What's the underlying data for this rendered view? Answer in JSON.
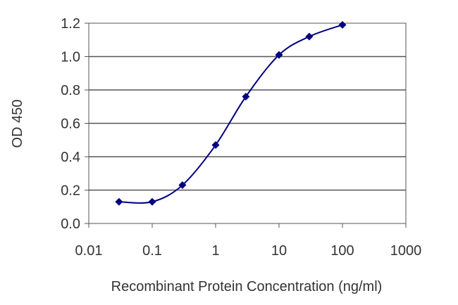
{
  "chart_data": {
    "type": "line",
    "title": "",
    "xlabel": "Recombinant Protein Concentration (ng/ml)",
    "ylabel": "OD 450",
    "xscale": "log",
    "xlim": [
      0.01,
      1000
    ],
    "ylim": [
      0.0,
      1.2
    ],
    "x_ticks": [
      "0.01",
      "0.1",
      "1",
      "10",
      "100",
      "1000"
    ],
    "y_ticks": [
      "0.0",
      "0.2",
      "0.4",
      "0.6",
      "0.8",
      "1.0",
      "1.2"
    ],
    "grid": "horizontal",
    "legend": "none",
    "series": [
      {
        "color": "#000080",
        "marker": "diamond",
        "points": [
          {
            "x": 0.03,
            "y": 0.13
          },
          {
            "x": 0.1,
            "y": 0.13
          },
          {
            "x": 0.3,
            "y": 0.23
          },
          {
            "x": 1,
            "y": 0.47
          },
          {
            "x": 3,
            "y": 0.76
          },
          {
            "x": 10,
            "y": 1.01
          },
          {
            "x": 30,
            "y": 1.12
          },
          {
            "x": 100,
            "y": 1.19
          }
        ]
      }
    ]
  }
}
